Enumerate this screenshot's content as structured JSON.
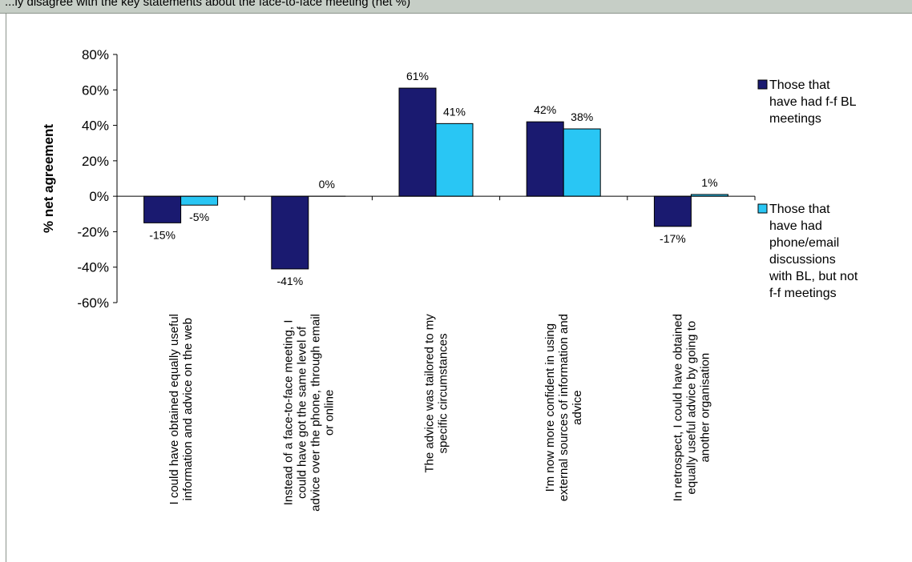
{
  "window": {
    "title": "...ly disagree with the key statements about the face-to-face meeting (net %)"
  },
  "colors": {
    "series1": "#1a1a70",
    "series2": "#29c6f4",
    "axis": "#000000"
  },
  "chart_data": {
    "type": "bar",
    "ylabel": "% net agreement",
    "ylim": [
      -60,
      80
    ],
    "yticks": [
      -60,
      -40,
      -20,
      0,
      20,
      40,
      60,
      80
    ],
    "ytick_labels": [
      "-60%",
      "-40%",
      "-20%",
      "0%",
      "20%",
      "40%",
      "60%",
      "80%"
    ],
    "legend_placement": "right",
    "grid": false,
    "categories": [
      [
        "I could have obtained equally useful",
        "information and advice on the web"
      ],
      [
        "Instead of a face-to-face meeting, I",
        "could have got the same level of",
        "advice over the phone, through email",
        "or online"
      ],
      [
        "The advice was tailored to my",
        "specific circumstances"
      ],
      [
        "I'm now more confident in using",
        "external sources of information and",
        "advice"
      ],
      [
        "In retrospect, I could have obtained",
        "equally useful advice by going to",
        "another organisation"
      ]
    ],
    "series": [
      {
        "name": [
          "Those that",
          "have had f-f BL",
          "meetings"
        ],
        "values": [
          -15,
          -41,
          61,
          42,
          -17
        ],
        "labels": [
          "-15%",
          "-41%",
          "61%",
          "42%",
          "-17%"
        ]
      },
      {
        "name": [
          "Those that",
          "have had",
          "phone/email",
          "discussions",
          "with BL, but not",
          "f-f meetings"
        ],
        "values": [
          -5,
          0,
          41,
          38,
          1
        ],
        "labels": [
          "-5%",
          "0%",
          "41%",
          "38%",
          "1%"
        ]
      }
    ]
  }
}
